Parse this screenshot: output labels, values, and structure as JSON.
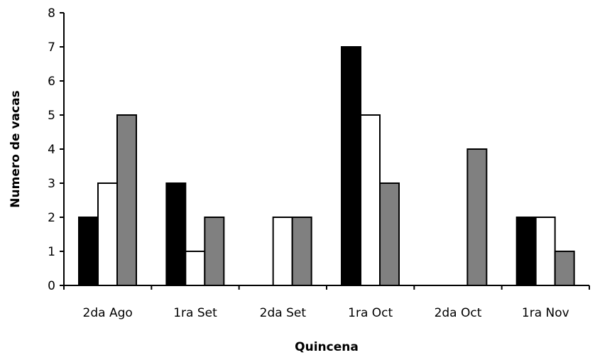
{
  "chart_data": {
    "type": "bar",
    "title": "",
    "xlabel": "Quincena",
    "ylabel": "Numero de vacas",
    "ylim": [
      0,
      8
    ],
    "yticks": [
      "0",
      "1",
      "2",
      "3",
      "4",
      "5",
      "6",
      "7",
      "8"
    ],
    "categories": [
      "2da Ago",
      "1ra Set",
      "2da Set",
      "1ra Oct",
      "2da Oct",
      "1ra Nov"
    ],
    "series": [
      {
        "values": [
          2,
          3,
          0,
          7,
          0,
          2
        ],
        "color": "#000000"
      },
      {
        "values": [
          3,
          1,
          2,
          5,
          0,
          2
        ],
        "color": "#ffffff"
      },
      {
        "values": [
          5,
          2,
          2,
          3,
          4,
          1
        ],
        "color": "#808080"
      }
    ],
    "grid": false,
    "legend": "none"
  }
}
